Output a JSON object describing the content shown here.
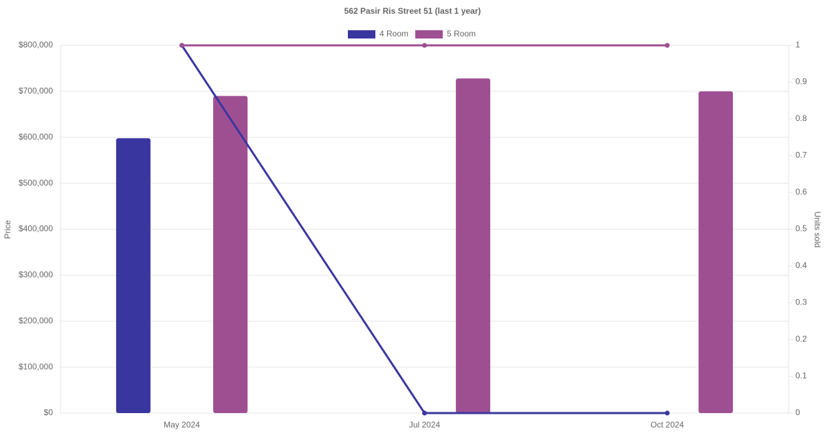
{
  "chart_data": {
    "type": "bar-line",
    "title": "562 Pasir Ris Street 51 (last 1 year)",
    "y_label": "Price",
    "y2_label": "Units sold",
    "categories": [
      "May 2024",
      "Jul 2024",
      "Oct 2024"
    ],
    "series": [
      {
        "name": "4 Room",
        "color": "#3a36a0",
        "type": "bar",
        "values": [
          598000,
          null,
          null
        ]
      },
      {
        "name": "5 Room",
        "color": "#9e4f92",
        "type": "bar",
        "values": [
          690000,
          728000,
          700000
        ]
      },
      {
        "name": "4 Room",
        "color": "#3a36a0",
        "type": "line",
        "axis": "y2",
        "values": [
          1,
          0,
          0
        ]
      },
      {
        "name": "5 Room",
        "color": "#9e4f92",
        "type": "line",
        "axis": "y2",
        "values": [
          1,
          1,
          1
        ]
      }
    ],
    "ylim": [
      0,
      800000
    ],
    "yticks": [
      {
        "value": 0,
        "label": "$0"
      },
      {
        "value": 100000,
        "label": "$100,000"
      },
      {
        "value": 200000,
        "label": "$200,000"
      },
      {
        "value": 300000,
        "label": "$300,000"
      },
      {
        "value": 400000,
        "label": "$400,000"
      },
      {
        "value": 500000,
        "label": "$500,000"
      },
      {
        "value": 600000,
        "label": "$600,000"
      },
      {
        "value": 700000,
        "label": "$700,000"
      },
      {
        "value": 800000,
        "label": "$800,000"
      }
    ],
    "y2lim": [
      0,
      1
    ],
    "y2ticks": [
      0,
      0.1,
      0.2,
      0.3,
      0.4,
      0.5,
      0.6,
      0.7,
      0.8,
      0.9,
      1
    ],
    "grid": true
  }
}
